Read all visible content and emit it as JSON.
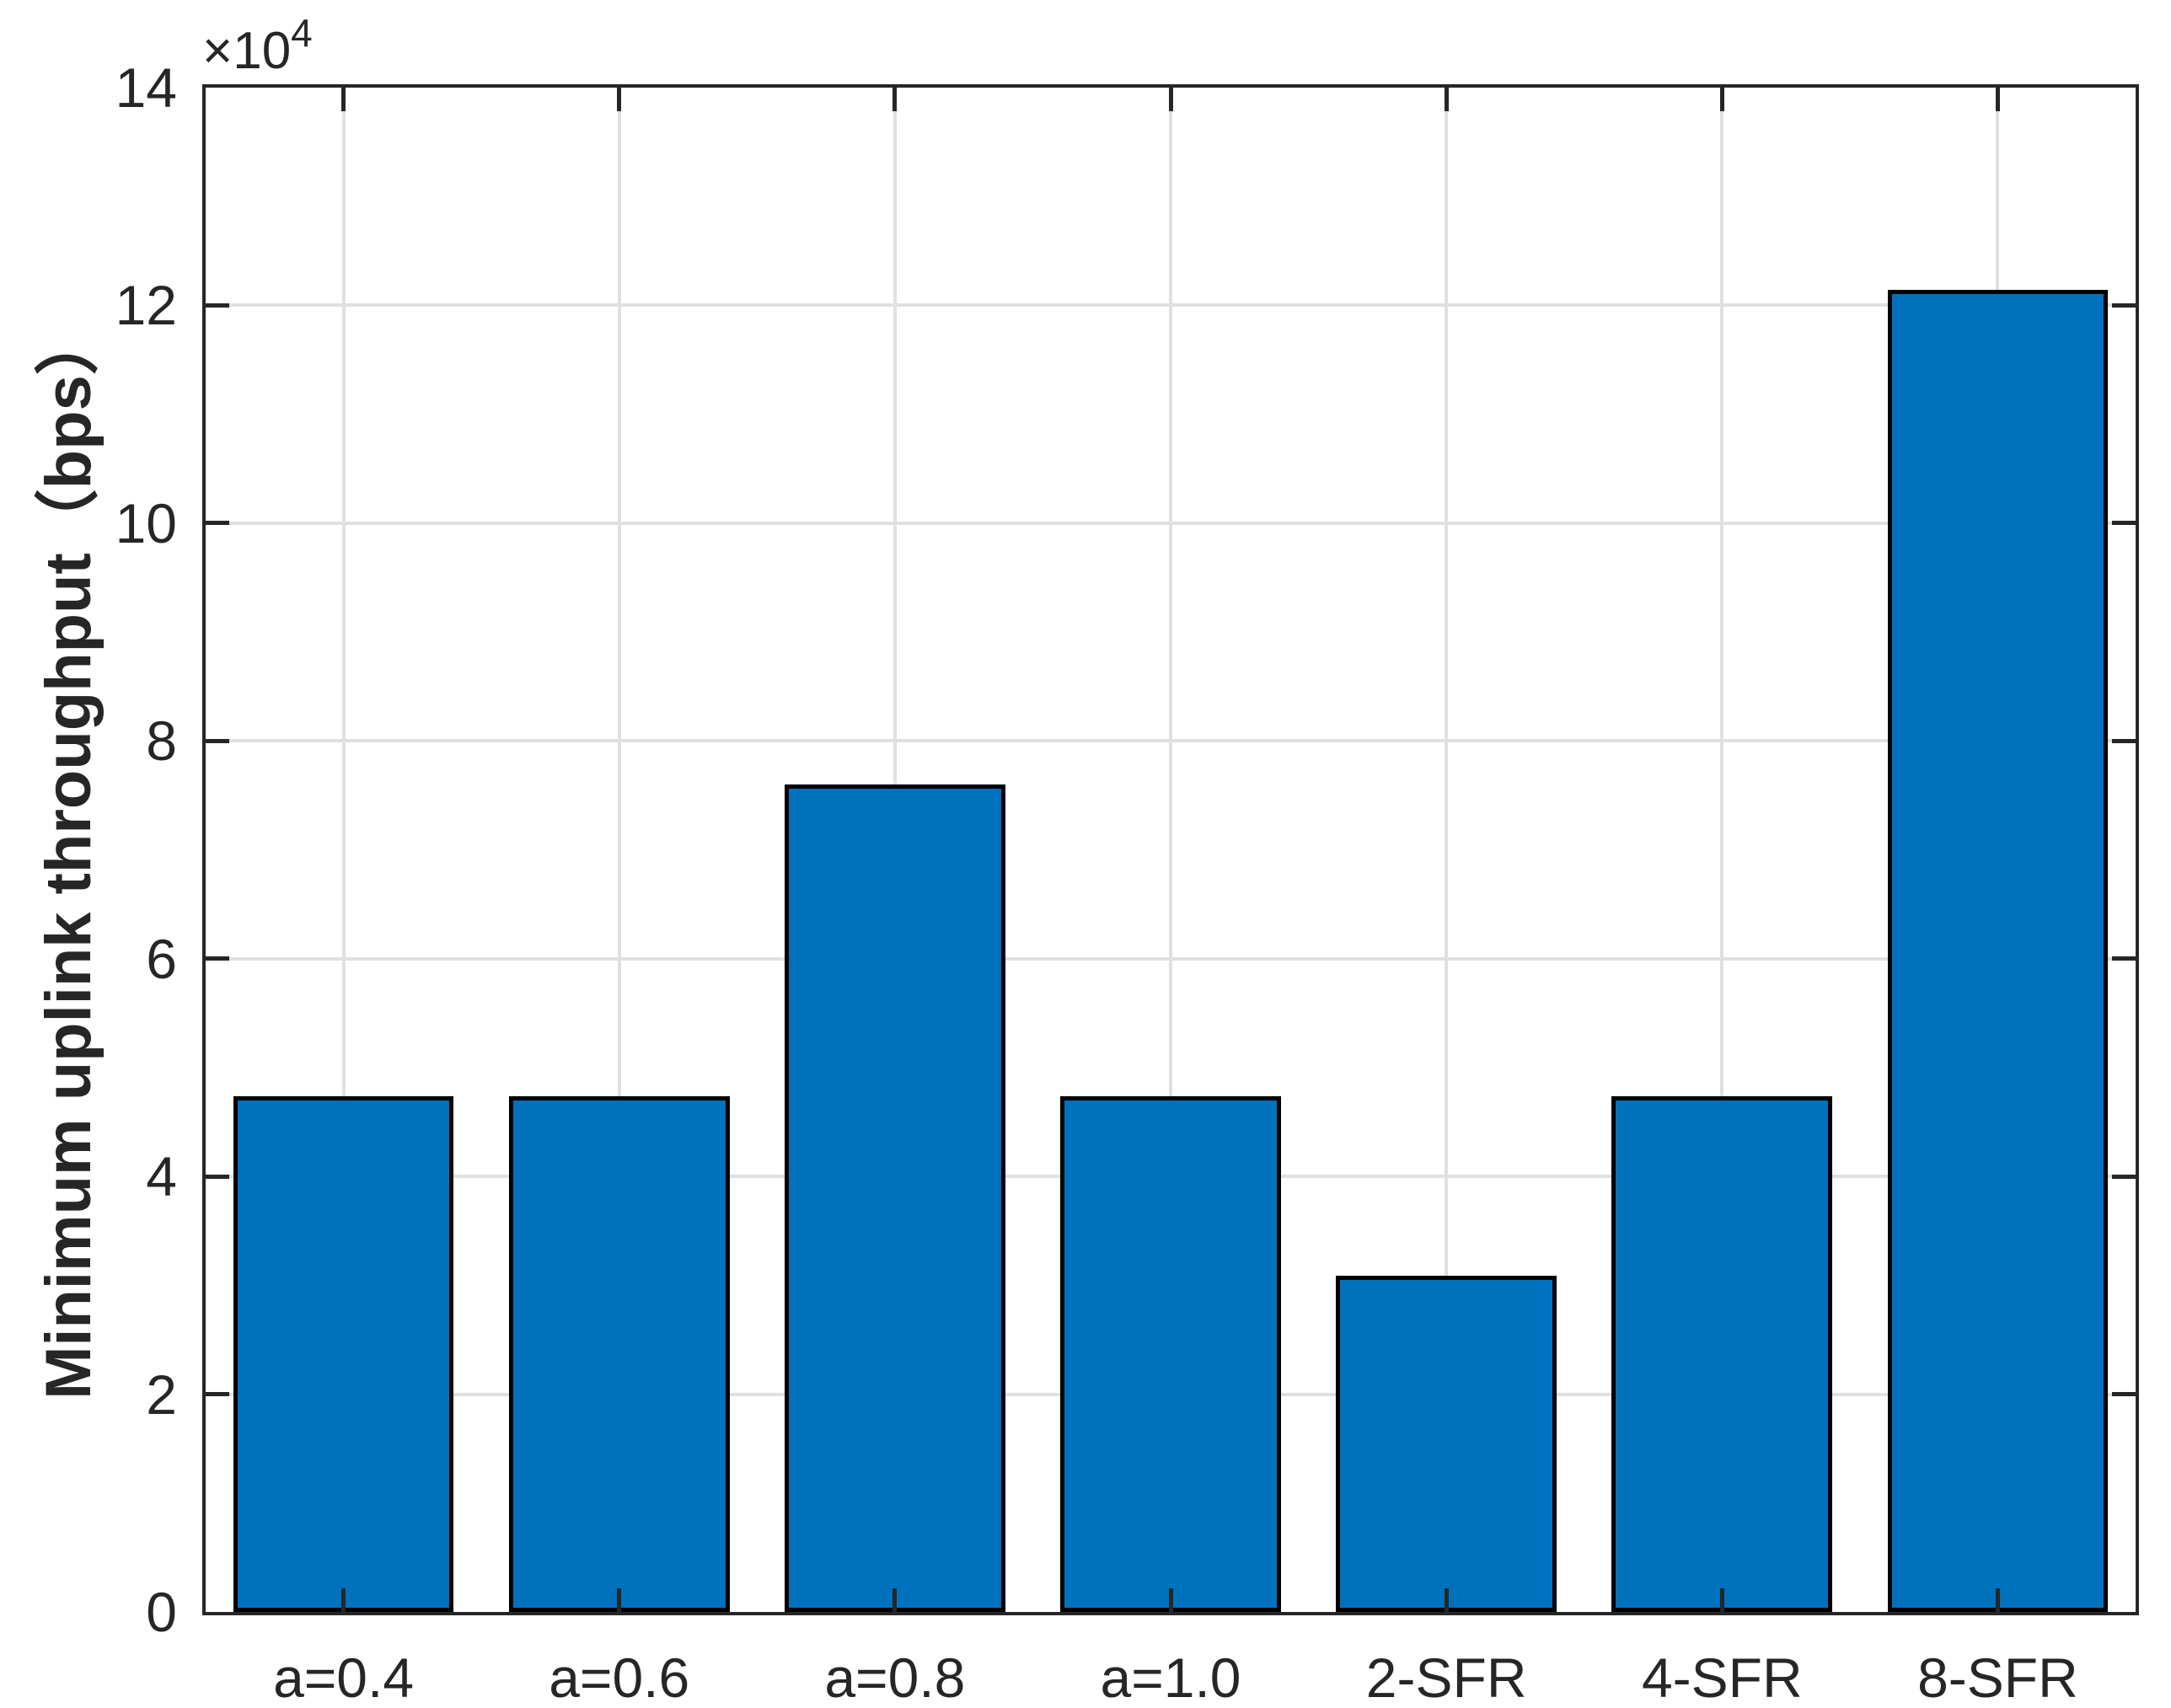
{
  "chart_data": {
    "type": "bar",
    "title": "",
    "xlabel": "",
    "ylabel": "Minimum uplink throughput（bps）",
    "categories": [
      "a=0.4",
      "a=0.6",
      "a=0.8",
      "a=1.0",
      "2-SFR",
      "4-SFR",
      "8-SFR"
    ],
    "values": [
      47400,
      47400,
      76000,
      47400,
      30900,
      47400,
      121400
    ],
    "values_in_1e4_units": [
      4.74,
      4.74,
      7.6,
      4.74,
      3.09,
      4.74,
      12.14
    ],
    "ylim": [
      0,
      140000
    ],
    "ytick_labels": [
      "0",
      "2",
      "4",
      "6",
      "8",
      "10",
      "12",
      "14"
    ],
    "ytick_values_1e4": [
      0,
      2,
      4,
      6,
      8,
      10,
      12,
      14
    ],
    "y_multiplier": {
      "base": "×10",
      "exponent": "4"
    },
    "grid": true,
    "grid_on": "both-x-and-y",
    "legend": null,
    "bar_width_fraction": 0.8,
    "colors": {
      "bar_fill": "#0072BD",
      "bar_edge": "#000000",
      "axis": "#262626",
      "grid": "#e0e0e0",
      "text": "#262626",
      "background": "#ffffff"
    }
  }
}
